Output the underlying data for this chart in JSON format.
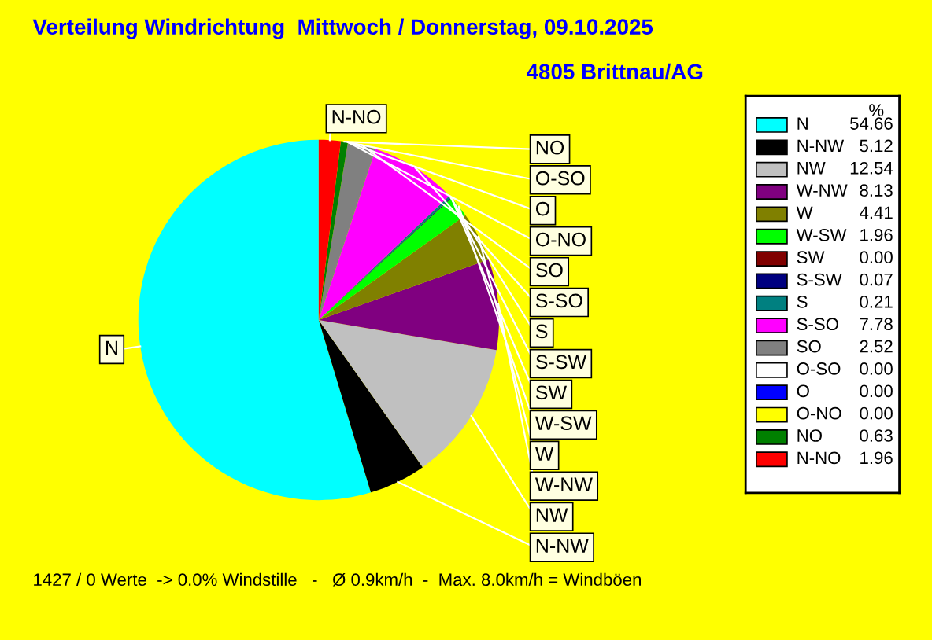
{
  "chart_data": {
    "type": "pie",
    "title": "Verteilung Windrichtung  Mittwoch / Donnerstag, 09.10.2025",
    "subtitle": "4805 Brittnau/AG",
    "categories": [
      "N",
      "N-NW",
      "NW",
      "W-NW",
      "W",
      "W-SW",
      "SW",
      "S-SW",
      "S",
      "S-SO",
      "SO",
      "O-SO",
      "O",
      "O-NO",
      "NO",
      "N-NO"
    ],
    "values": [
      54.66,
      5.12,
      12.54,
      8.13,
      4.41,
      1.96,
      0.0,
      0.07,
      0.21,
      7.78,
      2.52,
      0.0,
      0.0,
      0.0,
      0.63,
      1.96
    ],
    "colors": [
      "#00ffff",
      "#000000",
      "#c0c0c0",
      "#800080",
      "#808000",
      "#00ff00",
      "#800000",
      "#000080",
      "#008080",
      "#ff00ff",
      "#808080",
      "#ffffff",
      "#0000ff",
      "#ffff00",
      "#008000",
      "#ff0000"
    ],
    "value_labels": [
      "54.66",
      "5.12",
      "12.54",
      "8.13",
      "4.41",
      "1.96",
      "0.00",
      "0.07",
      "0.21",
      "7.78",
      "2.52",
      "0.00",
      "0.00",
      "0.00",
      "0.63",
      "1.96"
    ],
    "legend_title": "%",
    "legend": "right",
    "annotations": [
      "1427 / 0 Werte  -> 0.0% Windstille   -   Ø 0.9km/h  -  Max. 8.0km/h = Windböen"
    ]
  }
}
